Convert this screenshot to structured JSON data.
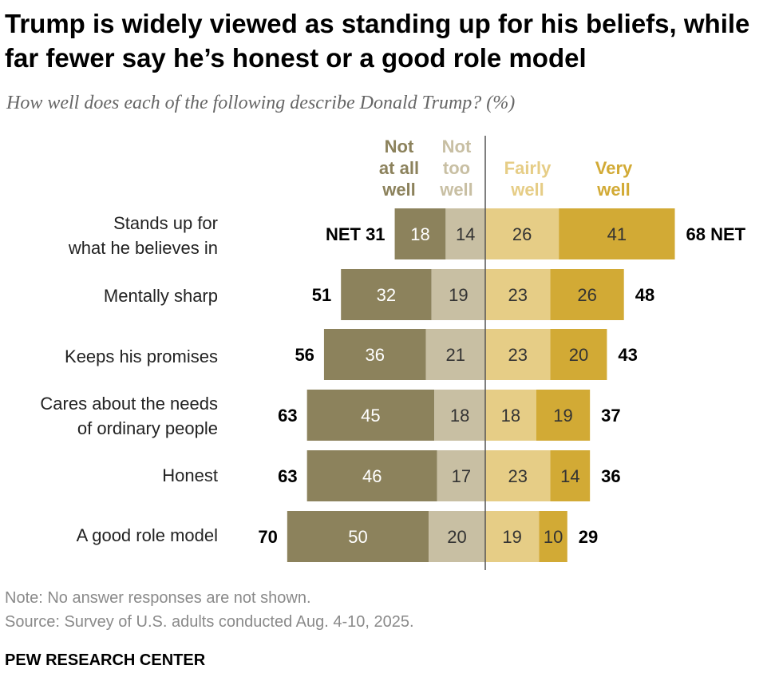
{
  "title": "Trump is widely viewed as standing up for his beliefs, while far fewer say he’s honest or a good role model",
  "subtitle": "How well does each of the following describe Donald Trump? (%)",
  "colors": {
    "not_at_all": "#8c825c",
    "not_too": "#c8bfa3",
    "fairly": "#e6cd86",
    "very": "#d2aa35",
    "net_text": "#000000",
    "divider": "#555555"
  },
  "column_headers": {
    "not_at_all": [
      "Not",
      "at all",
      "well"
    ],
    "not_too": [
      "Not",
      "too",
      "well"
    ],
    "fairly": [
      "Fairly",
      "well"
    ],
    "very": [
      "Very",
      "well"
    ]
  },
  "chart_data": {
    "type": "bar",
    "orientation": "horizontal-diverging",
    "categories": [
      "Stands up for what he believes in",
      "Mentally sharp",
      "Keeps his promises",
      "Cares about the needs of ordinary people",
      "Honest",
      "A good role model"
    ],
    "category_lines": [
      [
        "Stands up for",
        "what he believes in"
      ],
      [
        "Mentally sharp"
      ],
      [
        "Keeps his promises"
      ],
      [
        "Cares about the needs",
        "of ordinary people"
      ],
      [
        "Honest"
      ],
      [
        "A good role model"
      ]
    ],
    "series": [
      {
        "name": "Not at all well",
        "values": [
          18,
          32,
          36,
          45,
          46,
          50
        ]
      },
      {
        "name": "Not too well",
        "values": [
          14,
          19,
          21,
          18,
          17,
          20
        ]
      },
      {
        "name": "Fairly well",
        "values": [
          26,
          23,
          23,
          18,
          23,
          19
        ]
      },
      {
        "name": "Very well",
        "values": [
          41,
          26,
          20,
          19,
          14,
          10
        ]
      }
    ],
    "net_negative": [
      31,
      51,
      56,
      63,
      63,
      70
    ],
    "net_positive": [
      68,
      48,
      43,
      37,
      36,
      29
    ],
    "net_negative_prefix": "NET",
    "net_positive_suffix": "NET"
  },
  "notes": {
    "note": "Note: No answer responses are not shown.",
    "source": "Source: Survey of U.S. adults conducted Aug. 4-10, 2025."
  },
  "brand": "PEW RESEARCH CENTER"
}
